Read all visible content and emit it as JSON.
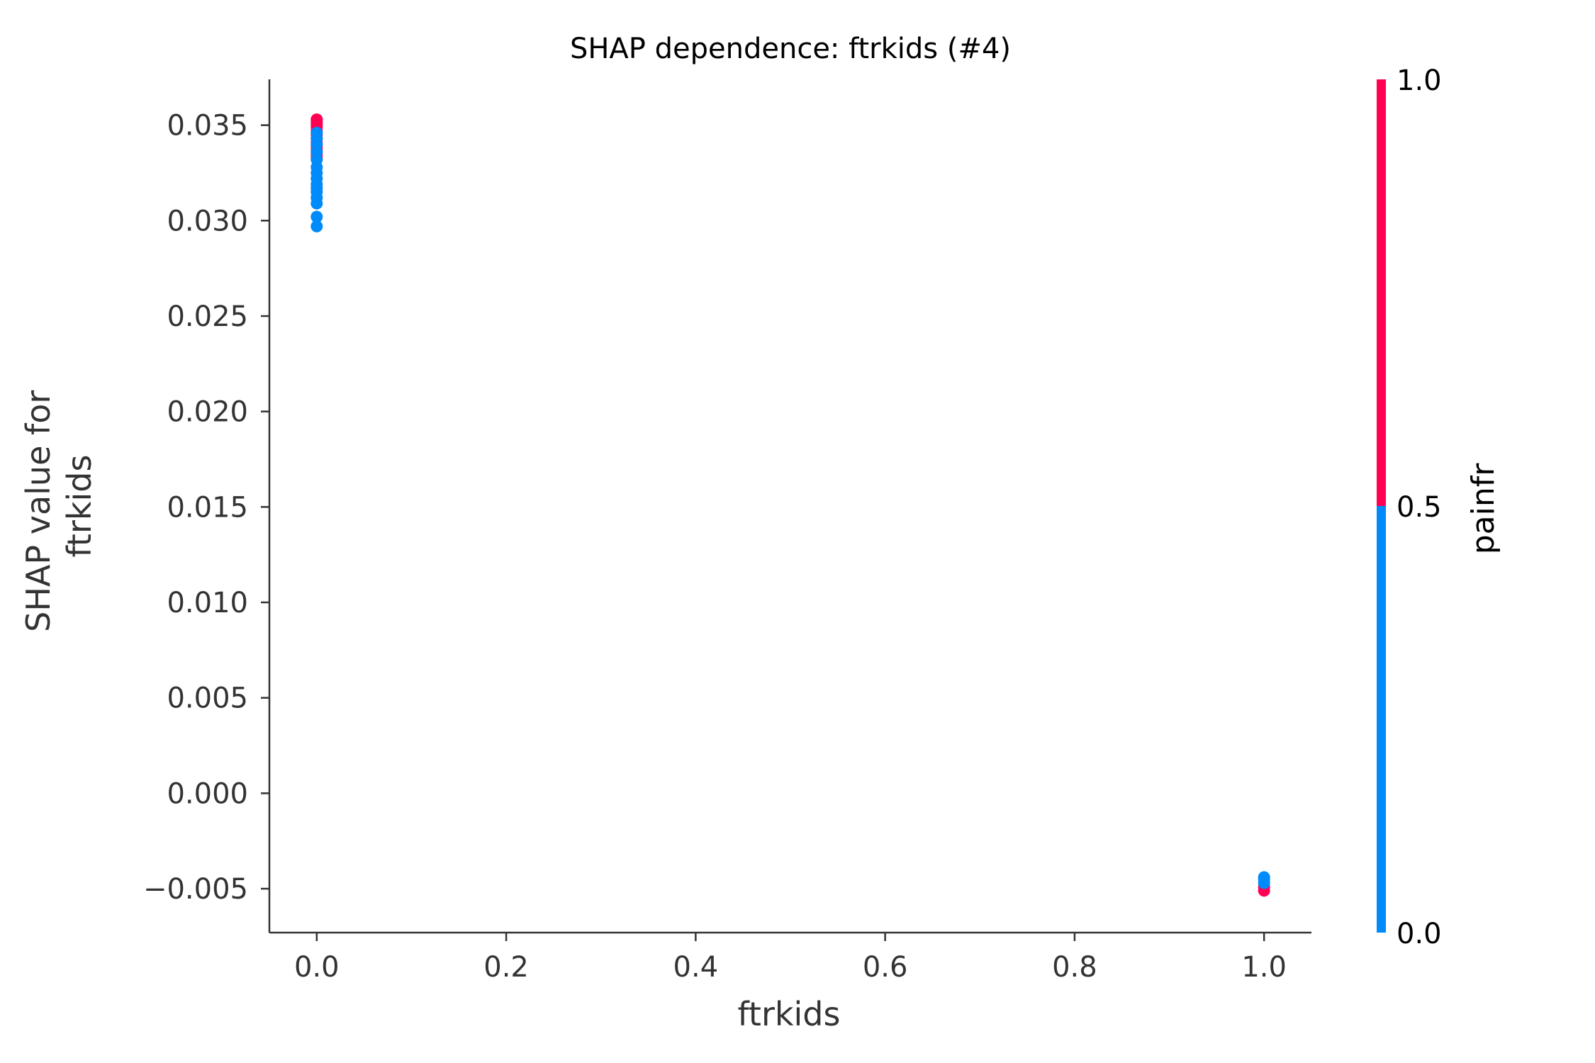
{
  "chart_data": {
    "type": "scatter",
    "title": "SHAP dependence: ftrkids (#4)",
    "xlabel": "ftrkids",
    "ylabel": [
      "SHAP value for",
      "ftrkids"
    ],
    "xlim": [
      -0.05,
      1.05
    ],
    "ylim": [
      -0.0073,
      0.0374
    ],
    "x_ticks": [
      0.0,
      0.2,
      0.4,
      0.6,
      0.8,
      1.0
    ],
    "x_tick_labels": [
      "0.0",
      "0.2",
      "0.4",
      "0.6",
      "0.8",
      "1.0"
    ],
    "y_ticks": [
      -0.005,
      0.0,
      0.005,
      0.01,
      0.015,
      0.02,
      0.025,
      0.03,
      0.035
    ],
    "y_tick_labels": [
      "−0.005",
      "0.000",
      "0.005",
      "0.010",
      "0.015",
      "0.020",
      "0.025",
      "0.030",
      "0.035"
    ],
    "grid": false,
    "colors": {
      "low": "#008bfb",
      "high": "#ff0052"
    },
    "colorbar": {
      "title": "painfr",
      "range": [
        0.0,
        1.0
      ],
      "tick_values": [
        0.0,
        0.5,
        1.0
      ],
      "tick_labels": [
        "0.0",
        "0.5",
        "1.0"
      ]
    },
    "series": [
      {
        "painfr": 1,
        "points": [
          [
            0,
            0.0353
          ],
          [
            0,
            0.0352
          ],
          [
            0,
            0.0351
          ],
          [
            0,
            0.035
          ],
          [
            0,
            0.0349
          ],
          [
            0,
            0.0347
          ],
          [
            0,
            0.0345
          ],
          [
            0,
            0.0343
          ],
          [
            0,
            0.0341
          ],
          [
            0,
            0.0339
          ],
          [
            0,
            0.0337
          ],
          [
            0,
            0.0335
          ],
          [
            0,
            0.0333
          ],
          [
            1,
            -0.0051
          ],
          [
            1,
            -0.0049
          ]
        ]
      },
      {
        "painfr": 0,
        "points": [
          [
            0,
            0.0346
          ],
          [
            0,
            0.0343
          ],
          [
            0,
            0.034
          ],
          [
            0,
            0.0336
          ],
          [
            0,
            0.0332
          ],
          [
            0,
            0.0328
          ],
          [
            0,
            0.0325
          ],
          [
            0,
            0.0322
          ],
          [
            0,
            0.0319
          ],
          [
            0,
            0.0317
          ],
          [
            0,
            0.0315
          ],
          [
            0,
            0.0312
          ],
          [
            0,
            0.0309
          ],
          [
            0,
            0.0302
          ],
          [
            0,
            0.0297
          ],
          [
            1,
            -0.0047
          ],
          [
            1,
            -0.0045
          ],
          [
            1,
            -0.0044
          ]
        ]
      }
    ]
  }
}
